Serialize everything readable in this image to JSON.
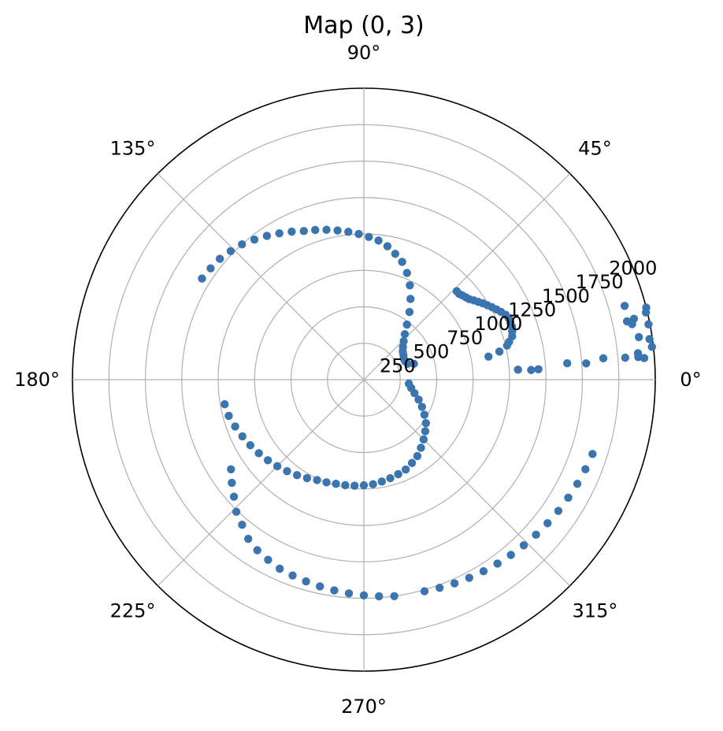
{
  "chart_data": {
    "type": "scatter",
    "projection": "polar",
    "title": "Map (0, 3)",
    "theta_unit": "degrees",
    "theta_ticks": [
      "0°",
      "45°",
      "90°",
      "135°",
      "180°",
      "225°",
      "270°",
      "315°"
    ],
    "r_ticks": [
      "250",
      "500",
      "750",
      "1000",
      "1250",
      "1500",
      "1750",
      "2000"
    ],
    "rlim": [
      0,
      2000
    ],
    "grid": true,
    "marker_color": "#3b75af",
    "series": [
      {
        "points": [
          [
            3.4,
            1200
          ],
          [
            3.3,
            1150
          ],
          [
            3.7,
            1060
          ],
          [
            4.6,
            1400
          ],
          [
            4.2,
            1530
          ],
          [
            5.1,
            1650
          ],
          [
            4.8,
            1800
          ],
          [
            5.5,
            1890
          ],
          [
            4.7,
            1890
          ],
          [
            4.4,
            1930
          ],
          [
            6.5,
            1990
          ],
          [
            8.8,
            1910
          ],
          [
            8.1,
            1980
          ],
          [
            11.0,
            1990
          ],
          [
            11.7,
            1880
          ],
          [
            12.5,
            1850
          ],
          [
            12.7,
            1900
          ],
          [
            13.4,
            1990
          ],
          [
            14.3,
            2000
          ],
          [
            15.8,
            1860
          ],
          [
            10.5,
            870
          ],
          [
            11.7,
            950
          ],
          [
            13.4,
            1010
          ],
          [
            14.6,
            1030
          ],
          [
            16.3,
            1060
          ],
          [
            18.0,
            1070
          ],
          [
            19.7,
            1080
          ],
          [
            21.3,
            1080
          ],
          [
            23.0,
            1080
          ],
          [
            24.6,
            1070
          ],
          [
            26.3,
            1050
          ],
          [
            27.9,
            1030
          ],
          [
            29.5,
            1010
          ],
          [
            31.1,
            990
          ],
          [
            32.7,
            970
          ],
          [
            34.2,
            950
          ],
          [
            35.8,
            930
          ],
          [
            37.4,
            910
          ],
          [
            38.9,
            900
          ],
          [
            40.5,
            890
          ],
          [
            42.0,
            880
          ],
          [
            43.6,
            880
          ],
          [
            17.6,
            360
          ],
          [
            20.0,
            320
          ],
          [
            24.0,
            310
          ],
          [
            28.0,
            310
          ],
          [
            32.0,
            320
          ],
          [
            36.0,
            330
          ],
          [
            40.0,
            350
          ],
          [
            44.0,
            380
          ],
          [
            48.0,
            420
          ],
          [
            52.0,
            480
          ],
          [
            56.0,
            560
          ],
          [
            60.0,
            640
          ],
          [
            64.0,
            720
          ],
          [
            68.0,
            790
          ],
          [
            72.0,
            850
          ],
          [
            76.0,
            890
          ],
          [
            80.0,
            930
          ],
          [
            84.0,
            960
          ],
          [
            88.0,
            980
          ],
          [
            92.0,
            1000
          ],
          [
            96.0,
            1020
          ],
          [
            100.0,
            1040
          ],
          [
            104.0,
            1060
          ],
          [
            108.0,
            1080
          ],
          [
            112.0,
            1100
          ],
          [
            116.0,
            1130
          ],
          [
            120.0,
            1160
          ],
          [
            124.0,
            1190
          ],
          [
            128.0,
            1220
          ],
          [
            132.0,
            1250
          ],
          [
            136.0,
            1270
          ],
          [
            140.0,
            1290
          ],
          [
            144.0,
            1300
          ],
          [
            148.0,
            1310
          ],
          [
            355.0,
            310
          ],
          [
            350.0,
            330
          ],
          [
            345.0,
            360
          ],
          [
            340.0,
            400
          ],
          [
            335.0,
            440
          ],
          [
            330.0,
            480
          ],
          [
            325.0,
            520
          ],
          [
            320.0,
            550
          ],
          [
            315.0,
            580
          ],
          [
            310.0,
            610
          ],
          [
            305.0,
            640
          ],
          [
            300.0,
            660
          ],
          [
            295.0,
            680
          ],
          [
            290.0,
            690
          ],
          [
            285.0,
            700
          ],
          [
            280.0,
            710
          ],
          [
            275.0,
            720
          ],
          [
            270.0,
            725
          ],
          [
            265.0,
            730
          ],
          [
            260.0,
            735
          ],
          [
            255.0,
            740
          ],
          [
            250.0,
            750
          ],
          [
            245.0,
            760
          ],
          [
            240.0,
            780
          ],
          [
            235.0,
            800
          ],
          [
            230.0,
            820
          ],
          [
            225.0,
            840
          ],
          [
            220.0,
            860
          ],
          [
            215.0,
            880
          ],
          [
            210.0,
            900
          ],
          [
            205.0,
            920
          ],
          [
            200.0,
            940
          ],
          [
            195.0,
            960
          ],
          [
            190.0,
            970
          ],
          [
            214.0,
            1100
          ],
          [
            218.0,
            1150
          ],
          [
            222.0,
            1200
          ],
          [
            226.0,
            1260
          ],
          [
            230.0,
            1300
          ],
          [
            234.0,
            1350
          ],
          [
            238.0,
            1380
          ],
          [
            242.0,
            1400
          ],
          [
            246.0,
            1420
          ],
          [
            250.0,
            1430
          ],
          [
            254.0,
            1440
          ],
          [
            258.0,
            1450
          ],
          [
            262.0,
            1460
          ],
          [
            266.0,
            1470
          ],
          [
            270.0,
            1480
          ],
          [
            274.0,
            1490
          ],
          [
            278.0,
            1500
          ],
          [
            286.0,
            1510
          ],
          [
            290.0,
            1520
          ],
          [
            294.0,
            1530
          ],
          [
            298.0,
            1540
          ],
          [
            302.0,
            1550
          ],
          [
            306.0,
            1560
          ],
          [
            310.0,
            1570
          ],
          [
            314.0,
            1580
          ],
          [
            318.0,
            1590
          ],
          [
            322.0,
            1600
          ],
          [
            326.0,
            1610
          ],
          [
            330.0,
            1620
          ],
          [
            334.0,
            1630
          ],
          [
            338.0,
            1640
          ],
          [
            342.0,
            1650
          ]
        ]
      }
    ]
  }
}
